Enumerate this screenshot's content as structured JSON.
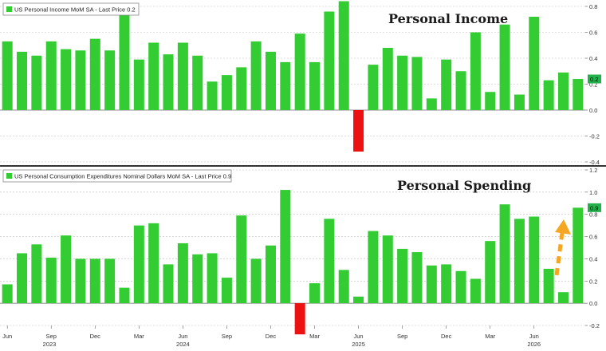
{
  "colors": {
    "positive": "#33cc33",
    "negative": "#ee1111",
    "arrow": "#f5a623",
    "badge": "#23b14d"
  },
  "x_axis": {
    "month_labels": [
      "Jun",
      "Sep",
      "Dec",
      "Mar",
      "Jun",
      "Sep",
      "Dec",
      "Mar",
      "Jun",
      "Sep",
      "Dec",
      "Mar",
      "Jun"
    ],
    "year_labels": [
      "2023",
      "2024",
      "2025",
      "2026"
    ]
  },
  "chart_data": [
    {
      "type": "bar",
      "title": "Personal Income",
      "legend": "US Personal Income MoM SA - Last Price 0.2",
      "last_value_label": "0.2",
      "ylim": [
        -0.4,
        0.8
      ],
      "yticks": [
        -0.4,
        -0.2,
        0.0,
        0.2,
        0.4,
        0.6,
        0.8
      ],
      "ytick_labels": [
        "-0.4",
        "-0.2",
        "0.0",
        "0.2",
        "0.4",
        "0.6",
        "0.8"
      ],
      "values": [
        0.53,
        0.45,
        0.42,
        0.53,
        0.47,
        0.46,
        0.55,
        0.46,
        0.78,
        0.39,
        0.52,
        0.43,
        0.52,
        0.42,
        0.22,
        0.27,
        0.33,
        0.53,
        0.45,
        0.37,
        0.59,
        0.37,
        0.76,
        0.84,
        -0.32,
        0.35,
        0.48,
        0.42,
        0.41,
        0.09,
        0.39,
        0.3,
        0.6,
        0.14,
        0.66,
        0.12,
        0.72,
        0.23,
        0.29,
        0.24
      ]
    },
    {
      "type": "bar",
      "title": "Personal Spending",
      "legend": "US Personal Consumption Expenditures Nominal Dollars MoM SA - Last Price 0.9",
      "last_value_label": "0.9",
      "ylim": [
        -0.2,
        1.2
      ],
      "yticks": [
        -0.2,
        0.0,
        0.2,
        0.4,
        0.6,
        0.8,
        1.0,
        1.2
      ],
      "ytick_labels": [
        "-0.2",
        "0.0",
        "0.2",
        "0.4",
        "0.6",
        "0.8",
        "1.0",
        "1.2"
      ],
      "values": [
        0.17,
        0.45,
        0.53,
        0.41,
        0.61,
        0.4,
        0.4,
        0.4,
        0.14,
        0.7,
        0.72,
        0.35,
        0.54,
        0.44,
        0.45,
        0.23,
        0.79,
        0.4,
        0.52,
        1.02,
        -0.28,
        0.18,
        0.76,
        0.3,
        0.06,
        0.65,
        0.61,
        0.49,
        0.46,
        0.34,
        0.35,
        0.29,
        0.22,
        0.56,
        0.89,
        0.76,
        0.78,
        0.31,
        0.1,
        0.86
      ]
    }
  ]
}
